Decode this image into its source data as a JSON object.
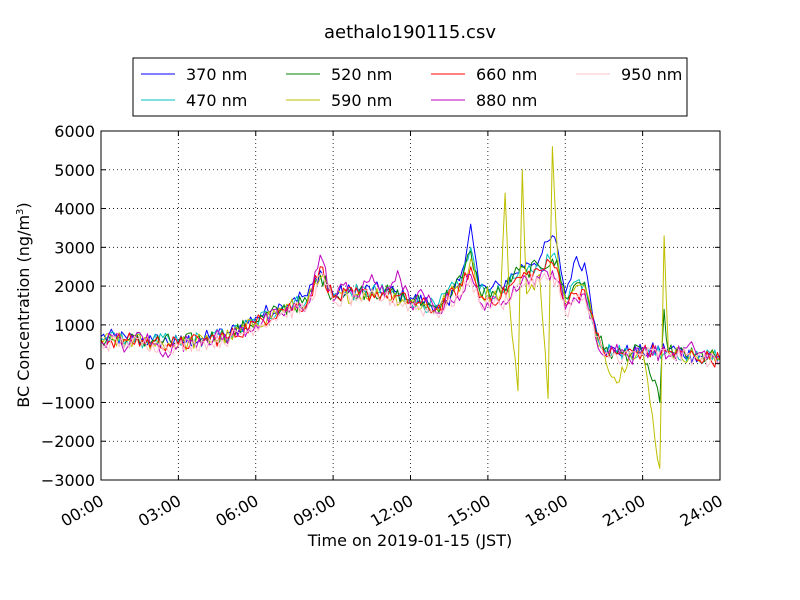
{
  "chart_data": {
    "type": "line",
    "title": "aethalo190115.csv",
    "xlabel": "Time on 2019-01-15 (JST)",
    "ylabel_main": "BC Concentration (ng/m",
    "ylabel_sup": "3",
    "ylabel_close": ")",
    "xlim": [
      "00:00",
      "24:00"
    ],
    "ylim": [
      -3000,
      6000
    ],
    "x_ticks": [
      "00:00",
      "03:00",
      "06:00",
      "09:00",
      "12:00",
      "15:00",
      "18:00",
      "21:00",
      "24:00"
    ],
    "y_ticks": [
      -3000,
      -2000,
      -1000,
      0,
      1000,
      2000,
      3000,
      4000,
      5000,
      6000
    ],
    "y_tick_labels": [
      "−3000",
      "−2000",
      "−1000",
      "0",
      "1000",
      "2000",
      "3000",
      "4000",
      "5000",
      "6000"
    ],
    "grid": true,
    "legend_position": "top-center",
    "series": [
      {
        "name": "370 nm",
        "color": "#0000ff",
        "points": [
          [
            "00:00",
            700
          ],
          [
            "01:00",
            650
          ],
          [
            "02:00",
            600
          ],
          [
            "03:00",
            550
          ],
          [
            "04:00",
            650
          ],
          [
            "05:00",
            800
          ],
          [
            "06:00",
            1200
          ],
          [
            "07:00",
            1500
          ],
          [
            "07:30",
            1700
          ],
          [
            "08:00",
            1750
          ],
          [
            "08:30",
            2400
          ],
          [
            "09:00",
            1800
          ],
          [
            "10:00",
            1900
          ],
          [
            "11:00",
            1900
          ],
          [
            "12:00",
            1700
          ],
          [
            "13:00",
            1500
          ],
          [
            "13:30",
            1500
          ],
          [
            "14:00",
            2400
          ],
          [
            "14:20",
            3600
          ],
          [
            "14:40",
            2000
          ],
          [
            "15:00",
            1900
          ],
          [
            "15:30",
            2000
          ],
          [
            "16:00",
            2300
          ],
          [
            "16:30",
            2600
          ],
          [
            "17:00",
            2700
          ],
          [
            "17:30",
            3300
          ],
          [
            "17:45",
            2800
          ],
          [
            "18:00",
            1800
          ],
          [
            "18:20",
            2600
          ],
          [
            "18:45",
            2600
          ],
          [
            "19:10",
            1000
          ],
          [
            "19:30",
            400
          ],
          [
            "20:00",
            300
          ],
          [
            "21:00",
            300
          ],
          [
            "22:00",
            400
          ],
          [
            "23:00",
            200
          ],
          [
            "24:00",
            200
          ]
        ]
      },
      {
        "name": "470 nm",
        "color": "#00bfbf",
        "points": [
          [
            "00:00",
            650
          ],
          [
            "01:00",
            600
          ],
          [
            "02:00",
            600
          ],
          [
            "03:00",
            550
          ],
          [
            "04:00",
            650
          ],
          [
            "05:00",
            750
          ],
          [
            "06:00",
            1100
          ],
          [
            "07:00",
            1450
          ],
          [
            "08:00",
            1650
          ],
          [
            "08:30",
            2300
          ],
          [
            "09:00",
            1750
          ],
          [
            "10:00",
            1850
          ],
          [
            "11:00",
            1850
          ],
          [
            "12:00",
            1650
          ],
          [
            "13:00",
            1450
          ],
          [
            "14:00",
            2200
          ],
          [
            "14:20",
            3000
          ],
          [
            "14:40",
            1900
          ],
          [
            "15:30",
            1800
          ],
          [
            "16:00",
            2200
          ],
          [
            "16:30",
            2400
          ],
          [
            "17:00",
            2500
          ],
          [
            "17:30",
            2800
          ],
          [
            "17:45",
            2500
          ],
          [
            "18:00",
            1700
          ],
          [
            "18:20",
            2100
          ],
          [
            "18:45",
            2100
          ],
          [
            "19:10",
            900
          ],
          [
            "19:30",
            400
          ],
          [
            "20:00",
            300
          ],
          [
            "21:00",
            300
          ],
          [
            "22:00",
            350
          ],
          [
            "23:00",
            200
          ],
          [
            "24:00",
            150
          ]
        ]
      },
      {
        "name": "520 nm",
        "color": "#008000",
        "points": [
          [
            "00:00",
            650
          ],
          [
            "01:00",
            600
          ],
          [
            "02:00",
            600
          ],
          [
            "03:00",
            550
          ],
          [
            "04:00",
            650
          ],
          [
            "05:00",
            750
          ],
          [
            "06:00",
            1100
          ],
          [
            "07:00",
            1400
          ],
          [
            "08:00",
            1600
          ],
          [
            "08:30",
            2300
          ],
          [
            "09:00",
            1750
          ],
          [
            "10:00",
            1850
          ],
          [
            "11:00",
            1850
          ],
          [
            "12:00",
            1650
          ],
          [
            "13:00",
            1450
          ],
          [
            "14:00",
            2200
          ],
          [
            "14:20",
            2900
          ],
          [
            "14:40",
            1900
          ],
          [
            "15:30",
            1800
          ],
          [
            "16:00",
            2300
          ],
          [
            "16:30",
            2400
          ],
          [
            "17:00",
            2500
          ],
          [
            "17:30",
            2700
          ],
          [
            "17:45",
            2400
          ],
          [
            "18:00",
            1700
          ],
          [
            "18:20",
            2000
          ],
          [
            "18:45",
            2100
          ],
          [
            "19:10",
            900
          ],
          [
            "19:30",
            350
          ],
          [
            "20:00",
            250
          ],
          [
            "21:00",
            300
          ],
          [
            "21:40",
            -1000
          ],
          [
            "21:50",
            1400
          ],
          [
            "22:00",
            300
          ],
          [
            "23:00",
            200
          ],
          [
            "24:00",
            150
          ]
        ]
      },
      {
        "name": "590 nm",
        "color": "#bfbf00",
        "points": [
          [
            "00:00",
            600
          ],
          [
            "01:00",
            600
          ],
          [
            "02:00",
            550
          ],
          [
            "03:00",
            500
          ],
          [
            "04:00",
            600
          ],
          [
            "05:00",
            700
          ],
          [
            "06:00",
            1050
          ],
          [
            "07:00",
            1400
          ],
          [
            "08:00",
            1600
          ],
          [
            "08:30",
            2200
          ],
          [
            "09:00",
            1700
          ],
          [
            "10:00",
            1800
          ],
          [
            "11:00",
            1800
          ],
          [
            "12:00",
            1600
          ],
          [
            "13:00",
            1400
          ],
          [
            "14:00",
            2100
          ],
          [
            "14:20",
            2700
          ],
          [
            "14:40",
            1800
          ],
          [
            "15:30",
            1800
          ],
          [
            "15:40",
            4400
          ],
          [
            "15:50",
            1600
          ],
          [
            "16:10",
            -700
          ],
          [
            "16:20",
            5000
          ],
          [
            "16:30",
            1800
          ],
          [
            "17:00",
            2300
          ],
          [
            "17:20",
            -900
          ],
          [
            "17:30",
            5600
          ],
          [
            "17:45",
            2300
          ],
          [
            "18:00",
            1600
          ],
          [
            "18:20",
            1900
          ],
          [
            "18:45",
            2000
          ],
          [
            "19:10",
            800
          ],
          [
            "19:30",
            300
          ],
          [
            "20:00",
            -500
          ],
          [
            "20:30",
            300
          ],
          [
            "21:00",
            300
          ],
          [
            "21:40",
            -2700
          ],
          [
            "21:50",
            3300
          ],
          [
            "22:00",
            300
          ],
          [
            "23:00",
            200
          ],
          [
            "24:00",
            100
          ]
        ]
      },
      {
        "name": "660 nm",
        "color": "#ff0000",
        "points": [
          [
            "00:00",
            600
          ],
          [
            "01:00",
            600
          ],
          [
            "02:00",
            550
          ],
          [
            "03:00",
            500
          ],
          [
            "04:00",
            600
          ],
          [
            "05:00",
            700
          ],
          [
            "06:00",
            1050
          ],
          [
            "07:00",
            1400
          ],
          [
            "08:00",
            1550
          ],
          [
            "08:30",
            2500
          ],
          [
            "09:00",
            1700
          ],
          [
            "10:00",
            1800
          ],
          [
            "11:00",
            1800
          ],
          [
            "12:00",
            1600
          ],
          [
            "13:00",
            1400
          ],
          [
            "14:00",
            2000
          ],
          [
            "14:20",
            2500
          ],
          [
            "14:40",
            1700
          ],
          [
            "15:30",
            1700
          ],
          [
            "16:00",
            2100
          ],
          [
            "16:30",
            2300
          ],
          [
            "17:00",
            2400
          ],
          [
            "17:30",
            2600
          ],
          [
            "17:45",
            2300
          ],
          [
            "18:00",
            1500
          ],
          [
            "18:20",
            1800
          ],
          [
            "18:45",
            1900
          ],
          [
            "19:10",
            800
          ],
          [
            "19:30",
            300
          ],
          [
            "20:00",
            250
          ],
          [
            "21:00",
            300
          ],
          [
            "22:00",
            300
          ],
          [
            "23:00",
            200
          ],
          [
            "24:00",
            100
          ]
        ]
      },
      {
        "name": "880 nm",
        "color": "#bf00bf",
        "points": [
          [
            "00:00",
            550
          ],
          [
            "00:30",
            700
          ],
          [
            "01:00",
            400
          ],
          [
            "01:30",
            800
          ],
          [
            "02:00",
            500
          ],
          [
            "02:30",
            300
          ],
          [
            "03:00",
            450
          ],
          [
            "03:30",
            600
          ],
          [
            "04:00",
            650
          ],
          [
            "05:00",
            700
          ],
          [
            "06:00",
            1000
          ],
          [
            "07:00",
            1300
          ],
          [
            "08:00",
            1500
          ],
          [
            "08:30",
            2800
          ],
          [
            "09:00",
            1600
          ],
          [
            "09:30",
            2100
          ],
          [
            "10:00",
            1700
          ],
          [
            "10:30",
            2300
          ],
          [
            "11:00",
            1700
          ],
          [
            "11:30",
            2400
          ],
          [
            "12:00",
            1500
          ],
          [
            "12:30",
            1800
          ],
          [
            "13:00",
            1300
          ],
          [
            "13:30",
            1700
          ],
          [
            "14:00",
            1800
          ],
          [
            "14:20",
            2300
          ],
          [
            "14:40",
            1600
          ],
          [
            "15:30",
            1500
          ],
          [
            "16:00",
            2000
          ],
          [
            "16:30",
            2200
          ],
          [
            "17:00",
            2200
          ],
          [
            "17:30",
            2400
          ],
          [
            "17:45",
            2100
          ],
          [
            "18:00",
            1400
          ],
          [
            "18:20",
            1700
          ],
          [
            "18:45",
            1800
          ],
          [
            "19:10",
            700
          ],
          [
            "19:30",
            200
          ],
          [
            "20:00",
            500
          ],
          [
            "20:30",
            100
          ],
          [
            "21:00",
            400
          ],
          [
            "22:00",
            200
          ],
          [
            "23:00",
            400
          ],
          [
            "24:00",
            0
          ]
        ]
      },
      {
        "name": "950 nm",
        "color": "#ffc0cb",
        "points": [
          [
            "00:00",
            500
          ],
          [
            "01:00",
            550
          ],
          [
            "02:00",
            500
          ],
          [
            "03:00",
            450
          ],
          [
            "04:00",
            550
          ],
          [
            "05:00",
            650
          ],
          [
            "06:00",
            950
          ],
          [
            "07:00",
            1300
          ],
          [
            "08:00",
            1450
          ],
          [
            "08:30",
            2300
          ],
          [
            "09:00",
            1600
          ],
          [
            "10:00",
            1700
          ],
          [
            "11:00",
            1700
          ],
          [
            "12:00",
            1500
          ],
          [
            "13:00",
            1300
          ],
          [
            "14:00",
            1800
          ],
          [
            "14:20",
            2200
          ],
          [
            "14:40",
            1600
          ],
          [
            "15:30",
            1500
          ],
          [
            "16:00",
            1900
          ],
          [
            "16:30",
            2100
          ],
          [
            "17:00",
            2100
          ],
          [
            "17:30",
            2300
          ],
          [
            "17:45",
            2000
          ],
          [
            "18:00",
            1300
          ],
          [
            "18:20",
            1600
          ],
          [
            "18:45",
            1700
          ],
          [
            "19:10",
            700
          ],
          [
            "19:30",
            200
          ],
          [
            "20:00",
            200
          ],
          [
            "21:00",
            250
          ],
          [
            "22:00",
            250
          ],
          [
            "23:00",
            150
          ],
          [
            "24:00",
            50
          ]
        ]
      }
    ]
  }
}
